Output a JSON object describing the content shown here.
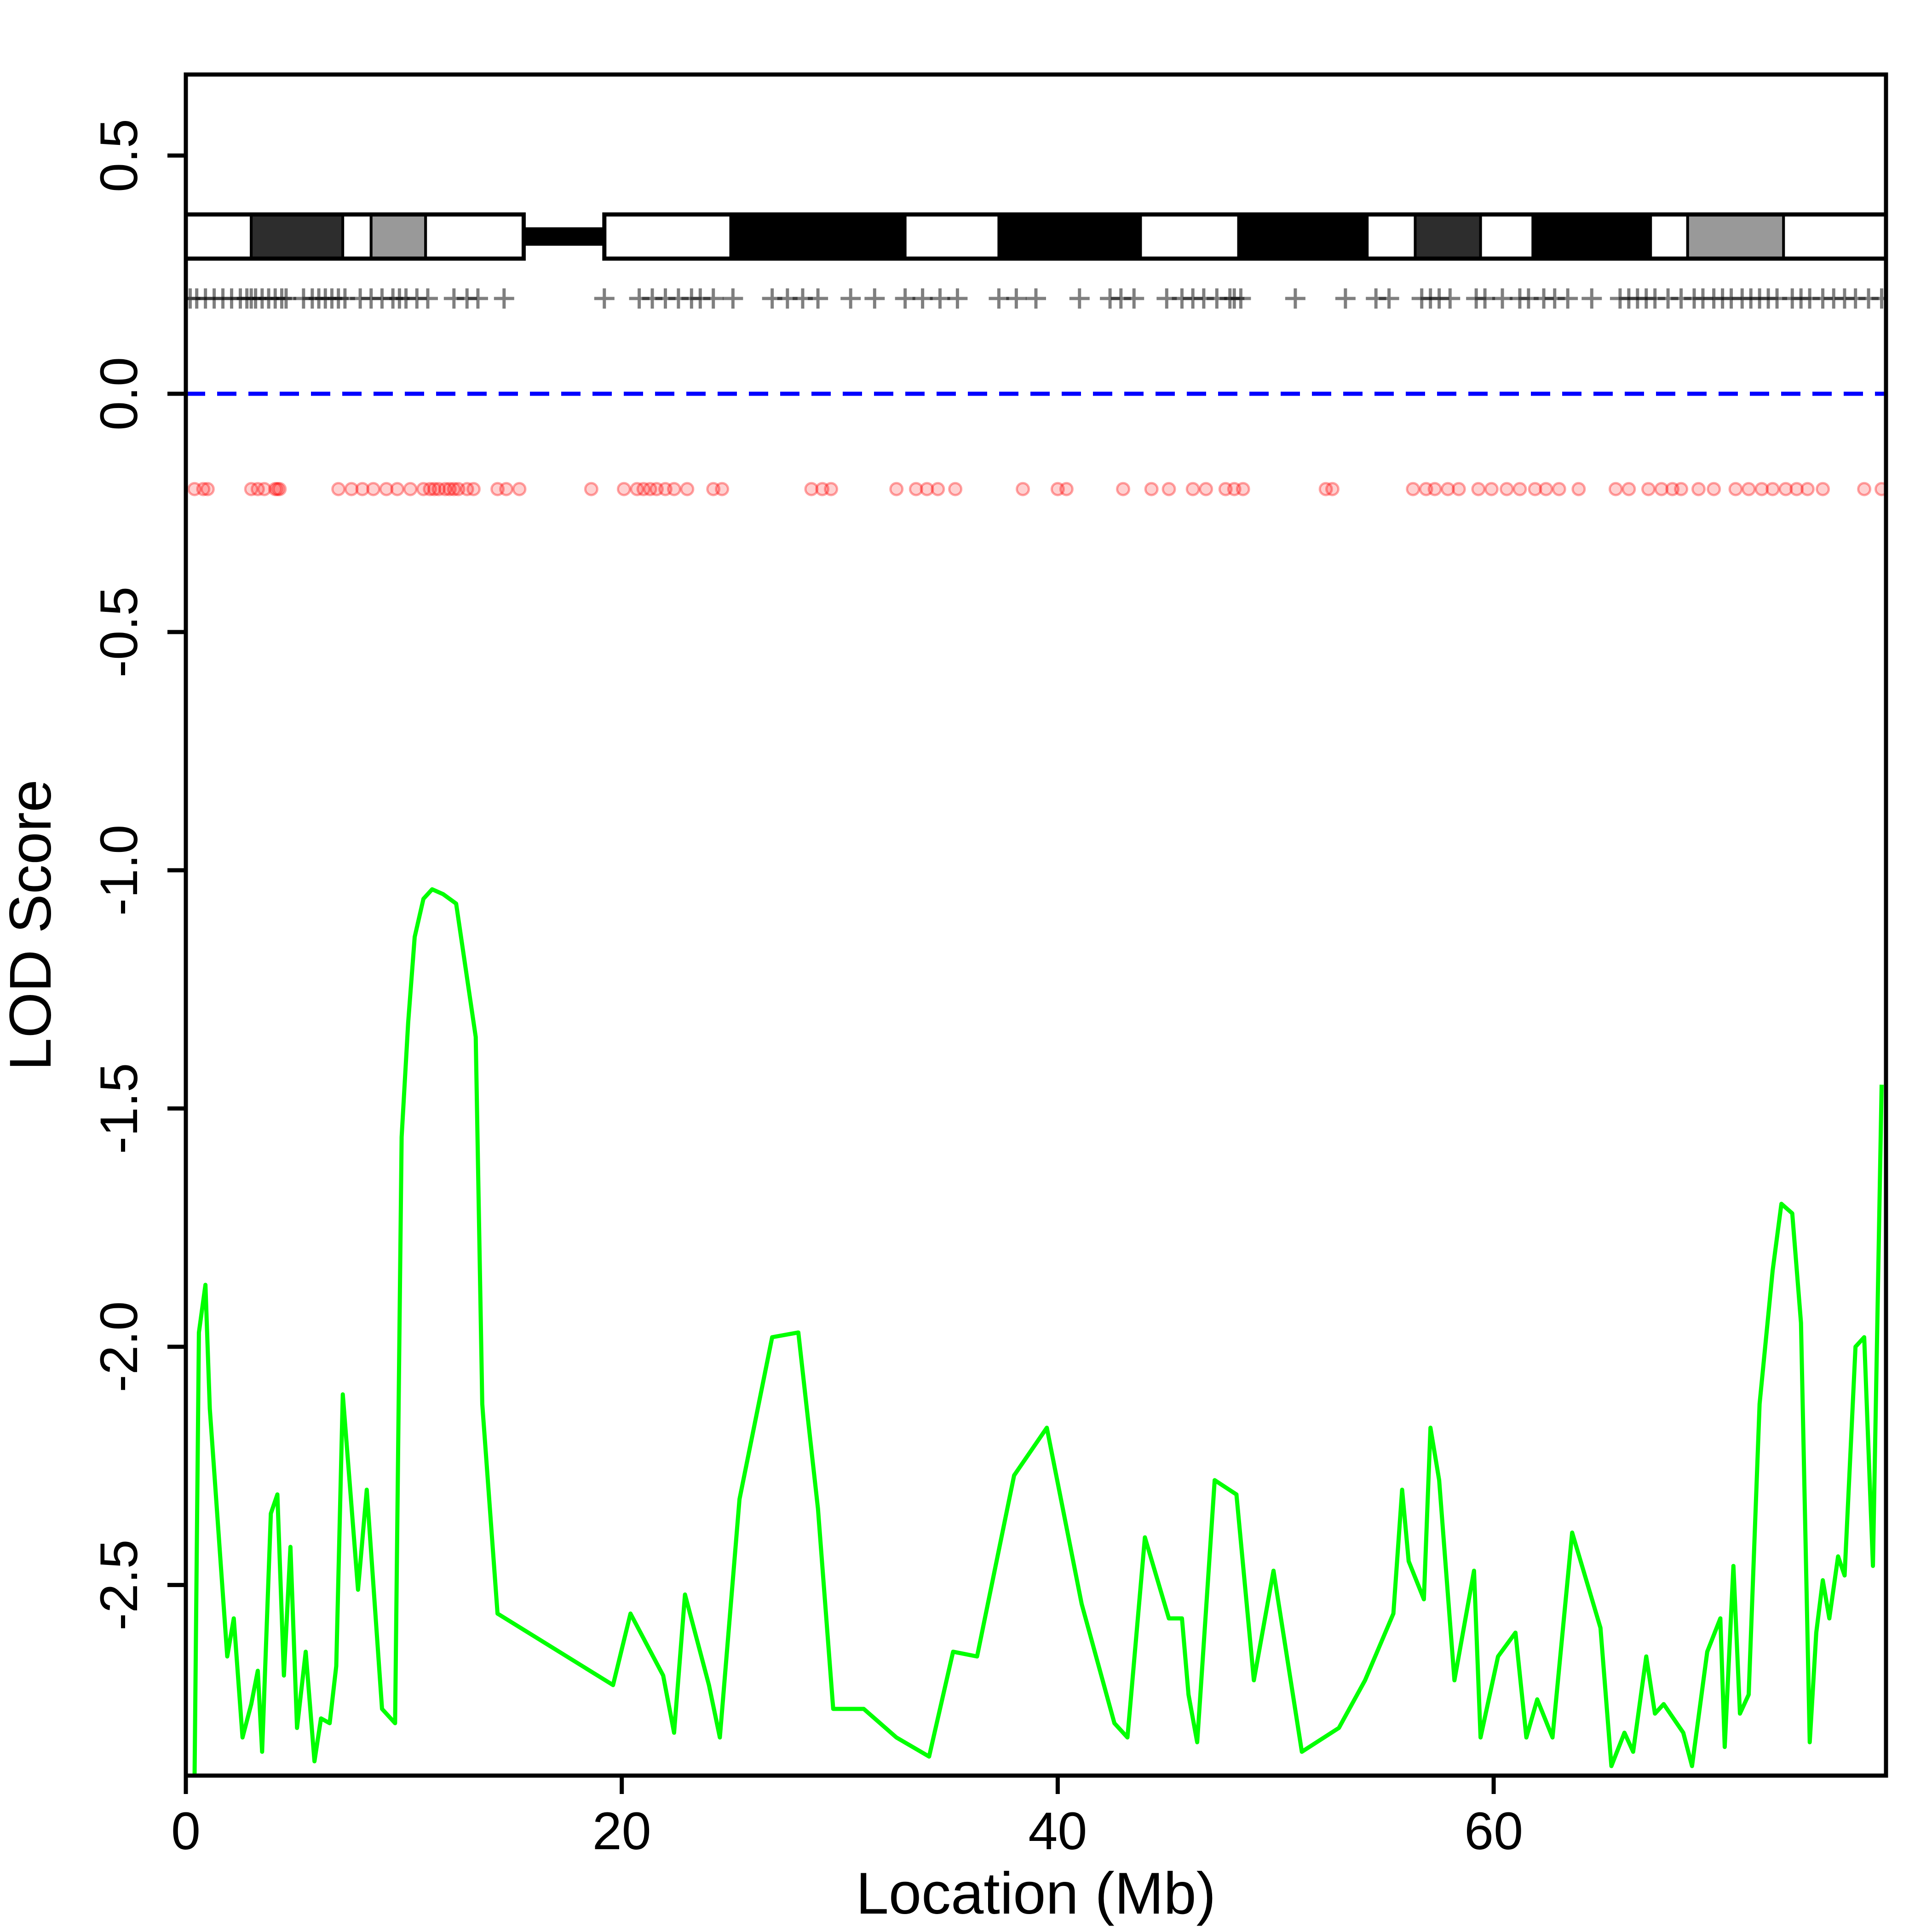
{
  "chart_data": {
    "type": "line",
    "xlabel": "Location (Mb)",
    "ylabel": "LOD Score",
    "xlim": [
      0,
      78
    ],
    "ylim": [
      -2.9,
      0.67
    ],
    "x_ticks": [
      0,
      20,
      40,
      60
    ],
    "x_tick_labels": [
      "0",
      "20",
      "40",
      "60"
    ],
    "y_ticks": [
      0.5,
      0.0,
      -0.5,
      -1.0,
      -1.5,
      -2.0,
      -2.5
    ],
    "y_tick_labels": [
      "0.5",
      "0.0",
      "-0.5",
      "-1.0",
      "-1.5",
      "-2.0",
      "-2.5"
    ],
    "grid": false,
    "legend": "none",
    "reference_line": {
      "y": 0.0,
      "style": "dashed",
      "color": "#0000ff"
    },
    "series": [
      {
        "color": "#00ff00",
        "x": [
          0.4,
          0.6,
          0.9,
          1.1,
          1.9,
          2.2,
          2.6,
          3.0,
          3.3,
          3.5,
          3.9,
          4.2,
          4.5,
          4.8,
          5.1,
          5.5,
          5.9,
          6.2,
          6.6,
          6.9,
          7.2,
          7.9,
          8.3,
          9.0,
          9.6,
          9.9,
          10.2,
          10.5,
          10.9,
          11.3,
          11.8,
          12.4,
          13.3,
          13.6,
          14.3,
          19.6,
          20.4,
          21.9,
          22.4,
          22.9,
          24.0,
          24.5,
          25.4,
          26.9,
          28.1,
          29.0,
          29.7,
          31.1,
          32.6,
          34.1,
          35.2,
          36.3,
          38.0,
          39.5,
          41.1,
          42.6,
          43.2,
          44.0,
          45.1,
          45.7,
          46.0,
          46.4,
          47.2,
          48.2,
          49.0,
          49.9,
          51.2,
          52.9,
          54.1,
          55.4,
          55.8,
          56.1,
          56.8,
          57.1,
          57.5,
          58.2,
          59.1,
          59.4,
          60.2,
          61.0,
          61.5,
          62.0,
          62.7,
          63.6,
          64.9,
          65.4,
          66.0,
          66.4,
          67.0,
          67.4,
          67.8,
          68.7,
          69.1,
          69.8,
          70.4,
          70.6,
          71.0,
          71.3,
          71.7,
          72.2,
          72.8,
          73.2,
          73.7,
          74.1,
          74.5,
          74.8,
          75.1,
          75.4,
          75.8,
          76.1,
          76.6,
          77.0,
          77.4,
          77.8
        ],
        "y": [
          -2.9,
          -1.97,
          -1.87,
          -2.13,
          -2.65,
          -2.57,
          -2.82,
          -2.75,
          -2.68,
          -2.85,
          -2.35,
          -2.31,
          -2.69,
          -2.42,
          -2.8,
          -2.64,
          -2.87,
          -2.78,
          -2.79,
          -2.67,
          -2.1,
          -2.51,
          -2.3,
          -2.76,
          -2.79,
          -1.56,
          -1.32,
          -1.14,
          -1.06,
          -1.04,
          -1.05,
          -1.07,
          -1.35,
          -2.12,
          -2.56,
          -2.71,
          -2.56,
          -2.69,
          -2.81,
          -2.52,
          -2.71,
          -2.82,
          -2.32,
          -1.98,
          -1.97,
          -2.34,
          -2.76,
          -2.76,
          -2.82,
          -2.86,
          -2.64,
          -2.65,
          -2.27,
          -2.17,
          -2.54,
          -2.79,
          -2.82,
          -2.4,
          -2.57,
          -2.57,
          -2.73,
          -2.83,
          -2.28,
          -2.31,
          -2.7,
          -2.47,
          -2.85,
          -2.8,
          -2.7,
          -2.56,
          -2.3,
          -2.45,
          -2.53,
          -2.17,
          -2.28,
          -2.7,
          -2.47,
          -2.82,
          -2.65,
          -2.6,
          -2.82,
          -2.74,
          -2.82,
          -2.39,
          -2.59,
          -2.88,
          -2.81,
          -2.85,
          -2.65,
          -2.77,
          -2.75,
          -2.81,
          -2.88,
          -2.64,
          -2.57,
          -2.84,
          -2.46,
          -2.77,
          -2.73,
          -2.12,
          -1.84,
          -1.7,
          -1.72,
          -1.95,
          -2.83,
          -2.6,
          -2.49,
          -2.57,
          -2.44,
          -2.48,
          -2.0,
          -1.98,
          -2.46,
          -1.45
        ]
      }
    ],
    "ideogram": {
      "y": 0.33,
      "arms": [
        [
          0,
          15.5
        ],
        [
          19.2,
          78
        ]
      ],
      "centromere": [
        15.5,
        19.2
      ],
      "bands": [
        {
          "start": 0,
          "end": 3.0,
          "stain": "gneg"
        },
        {
          "start": 3.0,
          "end": 7.2,
          "stain": "gpos75"
        },
        {
          "start": 7.2,
          "end": 8.5,
          "stain": "gneg"
        },
        {
          "start": 8.5,
          "end": 11.0,
          "stain": "gpos50"
        },
        {
          "start": 11.0,
          "end": 15.5,
          "stain": "gneg"
        },
        {
          "start": 19.2,
          "end": 25.0,
          "stain": "gneg"
        },
        {
          "start": 25.0,
          "end": 33.0,
          "stain": "gpos100"
        },
        {
          "start": 33.0,
          "end": 37.3,
          "stain": "gneg"
        },
        {
          "start": 37.3,
          "end": 43.8,
          "stain": "gpos100"
        },
        {
          "start": 43.8,
          "end": 48.3,
          "stain": "gneg"
        },
        {
          "start": 48.3,
          "end": 54.2,
          "stain": "gpos100"
        },
        {
          "start": 54.2,
          "end": 56.4,
          "stain": "gneg"
        },
        {
          "start": 56.4,
          "end": 59.4,
          "stain": "gpos75"
        },
        {
          "start": 59.4,
          "end": 61.8,
          "stain": "gneg"
        },
        {
          "start": 61.8,
          "end": 67.2,
          "stain": "gpos100"
        },
        {
          "start": 67.2,
          "end": 68.9,
          "stain": "gneg"
        },
        {
          "start": 68.9,
          "end": 73.3,
          "stain": "gpos50"
        },
        {
          "start": 73.3,
          "end": 78,
          "stain": "gneg"
        }
      ]
    },
    "marker_track": {
      "y": 0.2,
      "symbol": "+",
      "color": "#000000",
      "positions": [
        0.2,
        0.5,
        0.9,
        1.3,
        1.7,
        2.1,
        2.5,
        2.8,
        3.0,
        3.2,
        3.5,
        3.8,
        4.1,
        4.4,
        4.6,
        5.4,
        5.8,
        6.1,
        6.4,
        6.7,
        7.0,
        7.3,
        8.0,
        8.5,
        9.0,
        9.5,
        9.8,
        10.1,
        10.6,
        11.1,
        12.3,
        12.9,
        13.4,
        14.6,
        19.2,
        20.8,
        21.4,
        22.0,
        22.6,
        23.2,
        23.6,
        24.2,
        25.1,
        26.9,
        27.6,
        28.3,
        29.0,
        30.5,
        31.6,
        33.0,
        33.8,
        34.6,
        35.4,
        37.3,
        38.1,
        39.0,
        41.0,
        42.4,
        42.9,
        43.5,
        45.0,
        45.7,
        46.2,
        46.7,
        47.3,
        47.9,
        48.1,
        48.4,
        50.9,
        53.2,
        54.6,
        55.2,
        56.7,
        57.1,
        57.5,
        58.0,
        59.2,
        59.6,
        60.4,
        61.2,
        61.6,
        62.3,
        62.8,
        63.4,
        64.5,
        65.8,
        66.2,
        66.6,
        67.0,
        67.4,
        68.0,
        68.6,
        69.2,
        69.6,
        70.1,
        70.5,
        70.9,
        71.4,
        71.8,
        72.2,
        72.6,
        73.0,
        73.7,
        74.1,
        74.5,
        75.1,
        75.6,
        76.1,
        76.6,
        77.2,
        77.8
      ]
    },
    "point_track": {
      "y": -0.2,
      "color": "#ff0000",
      "positions": [
        0.4,
        0.8,
        1.0,
        3.0,
        3.3,
        3.6,
        4.1,
        4.2,
        4.3,
        7.0,
        7.6,
        8.1,
        8.6,
        9.2,
        9.7,
        10.3,
        10.9,
        11.2,
        11.4,
        11.6,
        11.9,
        12.1,
        12.3,
        12.5,
        12.9,
        13.2,
        14.3,
        14.7,
        15.3,
        18.6,
        20.1,
        20.7,
        21.0,
        21.3,
        21.6,
        22.0,
        22.4,
        23.0,
        24.2,
        24.6,
        28.7,
        29.2,
        29.6,
        32.6,
        33.5,
        34.0,
        34.5,
        35.3,
        38.4,
        40.0,
        40.4,
        43.0,
        44.3,
        45.1,
        46.2,
        46.8,
        47.7,
        48.1,
        48.5,
        52.3,
        52.6,
        56.3,
        56.9,
        57.3,
        57.9,
        58.4,
        59.3,
        59.9,
        60.6,
        61.2,
        61.9,
        62.4,
        63.0,
        63.9,
        65.6,
        66.2,
        67.1,
        67.7,
        68.2,
        68.6,
        69.4,
        70.1,
        71.1,
        71.7,
        72.3,
        72.8,
        73.4,
        73.9,
        74.4,
        75.1,
        77.0,
        77.8
      ]
    }
  }
}
